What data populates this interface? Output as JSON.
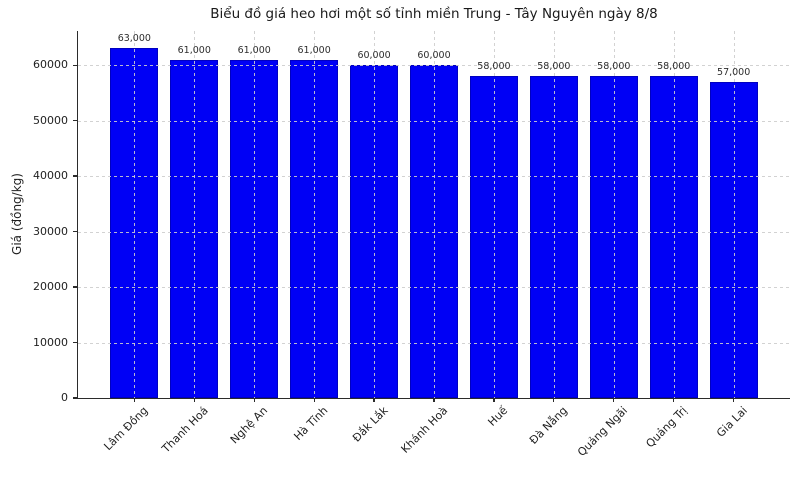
{
  "chart_data": {
    "type": "bar",
    "title": "Biểu đồ giá heo hơi một số tỉnh miền Trung - Tây Nguyên ngày 8/8",
    "xlabel": "",
    "ylabel": "Giá (đồng/kg)",
    "categories": [
      "Lâm Đồng",
      "Thanh Hoá",
      "Nghệ An",
      "Hà Tĩnh",
      "Đắk Lắk",
      "Khánh Hoà",
      "Huế",
      "Đà Nẵng",
      "Quảng Ngãi",
      "Quảng Trị",
      "Gia Lai"
    ],
    "values": [
      63000,
      61000,
      61000,
      61000,
      60000,
      60000,
      58000,
      58000,
      58000,
      58000,
      57000
    ],
    "value_labels": [
      "63,000",
      "61,000",
      "61,000",
      "61,000",
      "60,000",
      "60,000",
      "58,000",
      "58,000",
      "58,000",
      "58,000",
      "57,000"
    ],
    "yticks": [
      0,
      10000,
      20000,
      30000,
      40000,
      50000,
      60000
    ],
    "ytick_labels": [
      "0",
      "10000",
      "20000",
      "30000",
      "40000",
      "50000",
      "60000"
    ],
    "ylim": [
      0,
      66150
    ],
    "grid": true,
    "grid_style": "dashed",
    "legend": null,
    "colors": {
      "bar_fill": "#0000f5",
      "bar_edge": "#0000c0",
      "grid": "#cdcdcd",
      "axis": "#2b2b2b",
      "text": "#1f1f1f",
      "background": "#ffffff"
    }
  }
}
